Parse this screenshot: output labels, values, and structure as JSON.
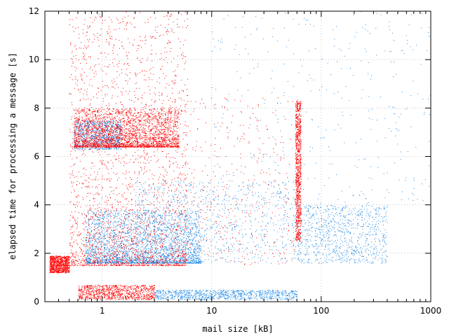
{
  "chart_data": {
    "type": "scatter",
    "title": "",
    "xlabel": "mail size [kB]",
    "ylabel": "elapsed time for processing a message [s]",
    "xscale": "log",
    "xlim": [
      0.3,
      1000
    ],
    "ylim": [
      0,
      12
    ],
    "grid": true,
    "legend": "none",
    "x_ticks": [
      {
        "value": 1,
        "label": "1"
      },
      {
        "value": 10,
        "label": "10"
      },
      {
        "value": 100,
        "label": "100"
      },
      {
        "value": 1000,
        "label": "1000"
      }
    ],
    "y_ticks": [
      {
        "value": 0,
        "label": "0"
      },
      {
        "value": 2,
        "label": "2"
      },
      {
        "value": 4,
        "label": "4"
      },
      {
        "value": 6,
        "label": "6"
      },
      {
        "value": 8,
        "label": "8"
      },
      {
        "value": 10,
        "label": "10"
      },
      {
        "value": 12,
        "label": "12"
      }
    ],
    "series": [
      {
        "color": "#ff0000",
        "clusters": [
          {
            "x_range": [
              0.33,
              0.5
            ],
            "y_range": [
              1.2,
              1.9
            ],
            "density": "medium"
          },
          {
            "x_range": [
              0.5,
              6
            ],
            "y_range": [
              1.5,
              12
            ],
            "density": "high"
          },
          {
            "x_range": [
              0.55,
              5
            ],
            "y_range": [
              6.4,
              8.0
            ],
            "density": "high"
          },
          {
            "x_range": [
              0.6,
              3
            ],
            "y_range": [
              0.1,
              0.7
            ],
            "density": "medium"
          },
          {
            "x_range": [
              6,
              60
            ],
            "y_range": [
              1.5,
              8.5
            ],
            "density": "low"
          },
          {
            "x_range": [
              58,
              65
            ],
            "y_range": [
              2.5,
              8.3
            ],
            "density": "medium"
          }
        ]
      },
      {
        "color": "#1f8ae6",
        "clusters": [
          {
            "x_range": [
              0.55,
              1.5
            ],
            "y_range": [
              6.3,
              7.5
            ],
            "density": "medium"
          },
          {
            "x_range": [
              0.7,
              8
            ],
            "y_range": [
              1.6,
              3.8
            ],
            "density": "high"
          },
          {
            "x_range": [
              2,
              60
            ],
            "y_range": [
              1.6,
              5.0
            ],
            "density": "medium"
          },
          {
            "x_range": [
              3,
              60
            ],
            "y_range": [
              0.1,
              0.5
            ],
            "density": "medium"
          },
          {
            "x_range": [
              60,
              400
            ],
            "y_range": [
              1.6,
              4.0
            ],
            "density": "medium"
          },
          {
            "x_range": [
              10,
              1000
            ],
            "y_range": [
              4.0,
              12
            ],
            "density": "low"
          }
        ]
      }
    ]
  }
}
